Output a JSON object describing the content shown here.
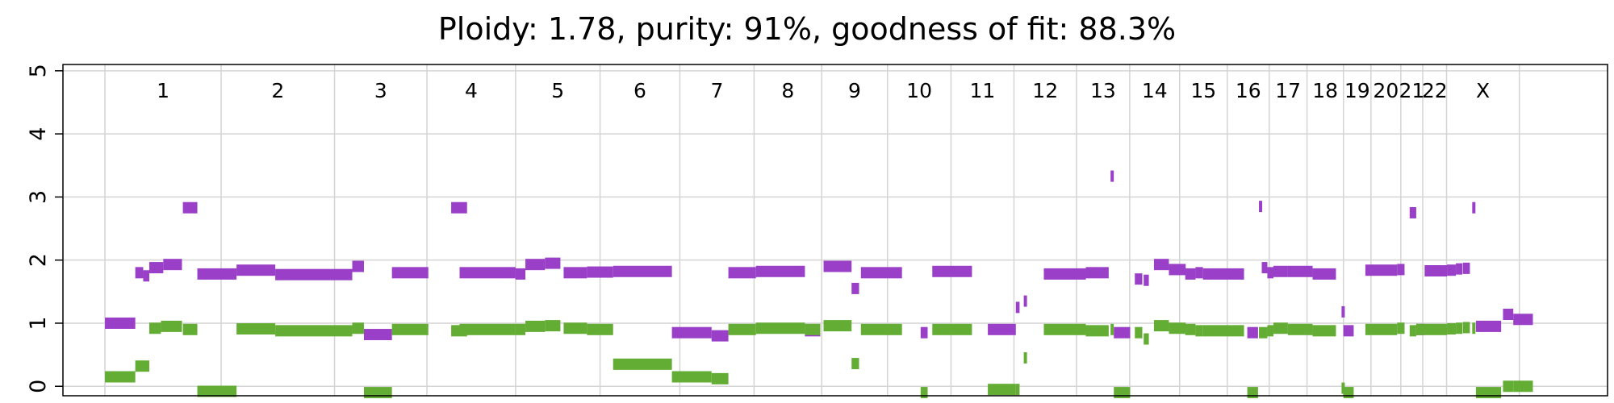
{
  "chart_data": {
    "type": "scatter",
    "title": "Ploidy: 1.78, purity: 91%, goodness of fit: 88.3%",
    "xlabel": "",
    "ylabel": "",
    "ylim": [
      -0.15,
      5.1
    ],
    "yticks": [
      0,
      1,
      2,
      3,
      4,
      5
    ],
    "grid": true,
    "x_unit": "genome position (Mb)",
    "xlim": [
      -90,
      3220
    ],
    "chromosomes": [
      {
        "label": "1",
        "start": 0,
        "end": 249
      },
      {
        "label": "2",
        "start": 249,
        "end": 492
      },
      {
        "label": "3",
        "start": 492,
        "end": 690
      },
      {
        "label": "4",
        "start": 690,
        "end": 880
      },
      {
        "label": "5",
        "start": 880,
        "end": 1061
      },
      {
        "label": "6",
        "start": 1061,
        "end": 1232
      },
      {
        "label": "7",
        "start": 1232,
        "end": 1391
      },
      {
        "label": "8",
        "start": 1391,
        "end": 1536
      },
      {
        "label": "9",
        "start": 1536,
        "end": 1677
      },
      {
        "label": "10",
        "start": 1677,
        "end": 1813
      },
      {
        "label": "11",
        "start": 1813,
        "end": 1948
      },
      {
        "label": "12",
        "start": 1948,
        "end": 2082
      },
      {
        "label": "13",
        "start": 2082,
        "end": 2196
      },
      {
        "label": "14",
        "start": 2196,
        "end": 2303
      },
      {
        "label": "15",
        "start": 2303,
        "end": 2405
      },
      {
        "label": "16",
        "start": 2405,
        "end": 2495
      },
      {
        "label": "17",
        "start": 2495,
        "end": 2576
      },
      {
        "label": "18",
        "start": 2576,
        "end": 2654
      },
      {
        "label": "19",
        "start": 2654,
        "end": 2713
      },
      {
        "label": "20",
        "start": 2713,
        "end": 2777
      },
      {
        "label": "21",
        "start": 2777,
        "end": 2824
      },
      {
        "label": "22",
        "start": 2824,
        "end": 2875
      },
      {
        "label": "X",
        "start": 2875,
        "end": 3031
      }
    ],
    "series": [
      {
        "color": "#9a3fc7",
        "segments": [
          [
            0,
            65,
            1.0
          ],
          [
            65,
            82,
            1.8
          ],
          [
            82,
            95,
            1.75
          ],
          [
            95,
            125,
            1.88
          ],
          [
            125,
            165,
            1.93
          ],
          [
            167,
            198,
            2.83
          ],
          [
            198,
            282,
            1.78
          ],
          [
            282,
            365,
            1.84
          ],
          [
            365,
            530,
            1.77
          ],
          [
            530,
            555,
            1.9
          ],
          [
            555,
            615,
            0.82
          ],
          [
            615,
            693,
            1.8
          ],
          [
            742,
            776,
            2.83
          ],
          [
            760,
            880,
            1.8
          ],
          [
            880,
            901,
            1.78
          ],
          [
            901,
            943,
            1.93
          ],
          [
            943,
            976,
            1.95
          ],
          [
            983,
            1033,
            1.8
          ],
          [
            1033,
            1089,
            1.81
          ],
          [
            1089,
            1215,
            1.82
          ],
          [
            1215,
            1300,
            0.85
          ],
          [
            1300,
            1336,
            0.8
          ],
          [
            1336,
            1395,
            1.8
          ],
          [
            1395,
            1500,
            1.82
          ],
          [
            1500,
            1533,
            0.88
          ],
          [
            1540,
            1600,
            1.9
          ],
          [
            1600,
            1616,
            1.55
          ],
          [
            1620,
            1708,
            1.8
          ],
          [
            1748,
            1763,
            0.85
          ],
          [
            1773,
            1858,
            1.82
          ],
          [
            1892,
            1952,
            0.9
          ],
          [
            1952,
            1960,
            1.25
          ],
          [
            1969,
            1973,
            1.35
          ],
          [
            2012,
            2102,
            1.78
          ],
          [
            2102,
            2151,
            1.8
          ],
          [
            2155,
            2158,
            3.33
          ],
          [
            2162,
            2197,
            0.85
          ],
          [
            2207,
            2223,
            1.7
          ],
          [
            2226,
            2237,
            1.68
          ],
          [
            2248,
            2280,
            1.93
          ],
          [
            2280,
            2316,
            1.85
          ],
          [
            2315,
            2337,
            1.78
          ],
          [
            2337,
            2353,
            1.8
          ],
          [
            2353,
            2441,
            1.78
          ],
          [
            2448,
            2471,
            0.85
          ],
          [
            2473,
            2476,
            2.85
          ],
          [
            2479,
            2491,
            1.88
          ],
          [
            2491,
            2504,
            1.8
          ],
          [
            2504,
            2535,
            1.82
          ],
          [
            2535,
            2588,
            1.82
          ],
          [
            2588,
            2638,
            1.78
          ],
          [
            2650,
            2654,
            1.18
          ],
          [
            2654,
            2676,
            0.88
          ],
          [
            2701,
            2769,
            1.84
          ],
          [
            2769,
            2785,
            1.85
          ],
          [
            2796,
            2810,
            2.75
          ],
          [
            2810,
            2828,
            0.9
          ],
          [
            2828,
            2876,
            1.83
          ],
          [
            2876,
            2895,
            1.84
          ],
          [
            2895,
            2909,
            1.86
          ],
          [
            2910,
            2925,
            1.87
          ],
          [
            2930,
            2934,
            2.83
          ],
          [
            2938,
            2992,
            0.95
          ],
          [
            2996,
            3018,
            1.14
          ],
          [
            3018,
            3060,
            1.06
          ]
        ]
      },
      {
        "color": "#64ad34",
        "segments": [
          [
            0,
            65,
            0.15
          ],
          [
            65,
            95,
            0.32
          ],
          [
            95,
            120,
            0.92
          ],
          [
            120,
            165,
            0.95
          ],
          [
            167,
            198,
            0.9
          ],
          [
            198,
            282,
            -0.08
          ],
          [
            282,
            365,
            0.91
          ],
          [
            365,
            530,
            0.88
          ],
          [
            530,
            555,
            0.92
          ],
          [
            555,
            615,
            -0.1
          ],
          [
            615,
            693,
            0.9
          ],
          [
            742,
            776,
            0.88
          ],
          [
            760,
            880,
            0.9
          ],
          [
            880,
            901,
            0.9
          ],
          [
            901,
            943,
            0.95
          ],
          [
            943,
            976,
            0.96
          ],
          [
            983,
            1033,
            0.92
          ],
          [
            1033,
            1089,
            0.9
          ],
          [
            1089,
            1215,
            0.35
          ],
          [
            1215,
            1300,
            0.15
          ],
          [
            1300,
            1336,
            0.12
          ],
          [
            1336,
            1395,
            0.9
          ],
          [
            1395,
            1500,
            0.92
          ],
          [
            1500,
            1533,
            0.9
          ],
          [
            1540,
            1600,
            0.96
          ],
          [
            1600,
            1616,
            0.36
          ],
          [
            1620,
            1708,
            0.9
          ],
          [
            1748,
            1763,
            -0.1
          ],
          [
            1773,
            1858,
            0.9
          ],
          [
            1892,
            1952,
            -0.05
          ],
          [
            1952,
            1960,
            -0.05
          ],
          [
            1969,
            1973,
            0.45
          ],
          [
            2012,
            2102,
            0.9
          ],
          [
            2102,
            2151,
            0.88
          ],
          [
            2155,
            2158,
            0.9
          ],
          [
            2162,
            2197,
            -0.1
          ],
          [
            2207,
            2223,
            0.85
          ],
          [
            2226,
            2237,
            0.75
          ],
          [
            2248,
            2280,
            0.96
          ],
          [
            2280,
            2316,
            0.92
          ],
          [
            2315,
            2337,
            0.9
          ],
          [
            2337,
            2353,
            0.88
          ],
          [
            2353,
            2441,
            0.88
          ],
          [
            2448,
            2471,
            -0.1
          ],
          [
            2473,
            2476,
            0.85
          ],
          [
            2479,
            2491,
            0.85
          ],
          [
            2491,
            2504,
            0.88
          ],
          [
            2504,
            2535,
            0.92
          ],
          [
            2535,
            2588,
            0.9
          ],
          [
            2588,
            2638,
            0.88
          ],
          [
            2650,
            2654,
            -0.03
          ],
          [
            2654,
            2676,
            -0.1
          ],
          [
            2701,
            2769,
            0.9
          ],
          [
            2769,
            2785,
            0.92
          ],
          [
            2796,
            2810,
            0.88
          ],
          [
            2810,
            2828,
            0.9
          ],
          [
            2828,
            2876,
            0.9
          ],
          [
            2876,
            2895,
            0.91
          ],
          [
            2895,
            2909,
            0.92
          ],
          [
            2910,
            2925,
            0.93
          ],
          [
            2930,
            2934,
            0.92
          ],
          [
            2938,
            2992,
            -0.1
          ],
          [
            2996,
            3018,
            0.0
          ],
          [
            3018,
            3060,
            0.0
          ]
        ]
      }
    ]
  }
}
